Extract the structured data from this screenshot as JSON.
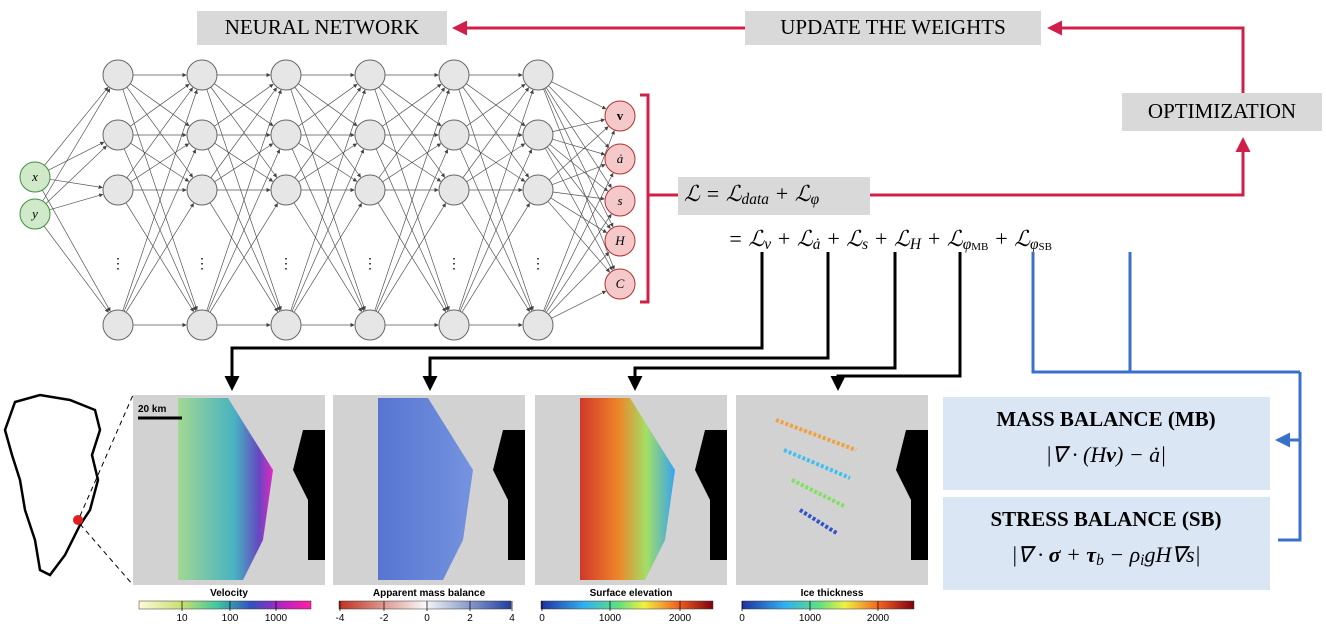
{
  "labels": {
    "neural_network": "NEURAL NETWORK",
    "update": "UPDATE THE WEIGHTS",
    "optimization": "OPTIMIZATION"
  },
  "inputs": [
    "x",
    "y"
  ],
  "outputs": [
    "v",
    "ȧ",
    "s",
    "H",
    "C"
  ],
  "loss": {
    "line1": [
      {
        "text": "ℒ = ℒ"
      },
      {
        "sub": "data"
      },
      {
        "text": " + ℒ"
      },
      {
        "sub": "φ"
      }
    ],
    "line2": [
      {
        "text": "= ℒ"
      },
      {
        "sub": "v"
      },
      {
        "text": " + ℒ"
      },
      {
        "sub": "ȧ"
      },
      {
        "text": " + ℒ"
      },
      {
        "sub": "s"
      },
      {
        "text": " + ℒ"
      },
      {
        "sub": "H"
      },
      {
        "text": " + ℒ"
      },
      {
        "sub": "φ"
      },
      {
        "subsub": "MB"
      },
      {
        "text": " + ℒ"
      },
      {
        "sub": "φ"
      },
      {
        "subsub": "SB"
      }
    ]
  },
  "mass_balance": {
    "title": "MASS BALANCE (MB)",
    "formula": [
      {
        "text": "|∇ · (H"
      },
      {
        "bold": "v"
      },
      {
        "text": ") − ȧ|"
      }
    ]
  },
  "stress_balance": {
    "title": "STRESS BALANCE (SB)",
    "formula": [
      {
        "text": "|∇ · "
      },
      {
        "bold": "σ"
      },
      {
        "text": " + "
      },
      {
        "bold": "τ"
      },
      {
        "sub": "b"
      },
      {
        "text": " − ρ"
      },
      {
        "sub": "i"
      },
      {
        "text": "gH∇s|"
      }
    ]
  },
  "scale": "20 km",
  "panels": [
    {
      "title": "Velocity",
      "ticks": [
        10,
        100,
        1000
      ]
    },
    {
      "title": "Apparent mass balance",
      "ticks": [
        -4,
        -2,
        0,
        2,
        4
      ]
    },
    {
      "title": "Surface elevation",
      "ticks": [
        0,
        1000,
        2000
      ]
    },
    {
      "title": "Ice thickness",
      "ticks": [
        0,
        1000,
        2000
      ]
    }
  ]
}
